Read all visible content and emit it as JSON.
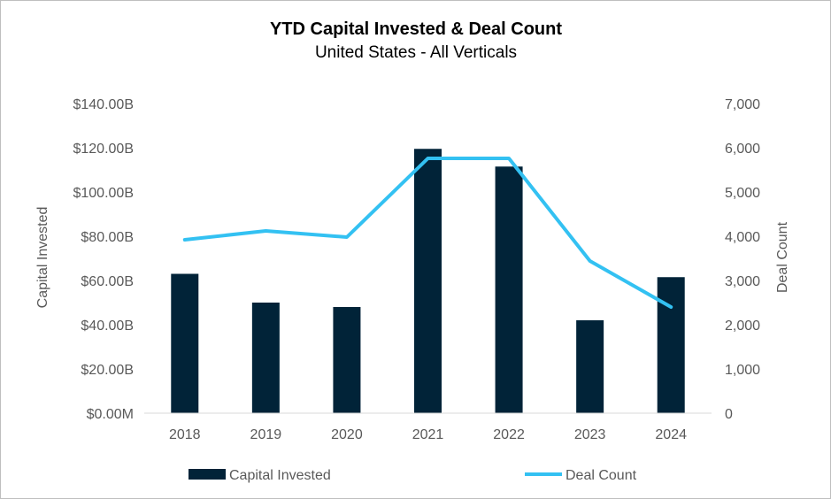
{
  "chart_data": {
    "type": "bar",
    "title": "YTD Capital Invested & Deal Count",
    "subtitle": "United States - All Verticals",
    "categories": [
      "2018",
      "2019",
      "2020",
      "2021",
      "2022",
      "2023",
      "2024"
    ],
    "ylabel": "Capital Invested",
    "ylabel_right": "Deal Count",
    "ylim": [
      0,
      140
    ],
    "ylim_right": [
      0,
      7000
    ],
    "y_ticks": [
      {
        "value": 0,
        "label": "$0.00M"
      },
      {
        "value": 20,
        "label": "$20.00B"
      },
      {
        "value": 40,
        "label": "$40.00B"
      },
      {
        "value": 60,
        "label": "$60.00B"
      },
      {
        "value": 80,
        "label": "$80.00B"
      },
      {
        "value": 100,
        "label": "$100.00B"
      },
      {
        "value": 120,
        "label": "$120.00B"
      },
      {
        "value": 140,
        "label": "$140.00B"
      }
    ],
    "y_right_ticks": [
      {
        "value": 0,
        "label": "0"
      },
      {
        "value": 1000,
        "label": "1,000"
      },
      {
        "value": 2000,
        "label": "2,000"
      },
      {
        "value": 3000,
        "label": "3,000"
      },
      {
        "value": 4000,
        "label": "4,000"
      },
      {
        "value": 5000,
        "label": "5,000"
      },
      {
        "value": 6000,
        "label": "6,000"
      },
      {
        "value": 7000,
        "label": "7,000"
      }
    ],
    "grid": false,
    "legend_position": "bottom",
    "series": [
      {
        "name": "Capital Invested",
        "type": "bar",
        "axis": "left",
        "color": "#012338",
        "values": [
          63,
          50,
          48,
          119.5,
          111.5,
          42,
          61.5
        ]
      },
      {
        "name": "Deal Count",
        "type": "line",
        "axis": "right",
        "color": "#33c1f2",
        "values": [
          3920,
          4120,
          3980,
          5760,
          5760,
          3440,
          2400
        ]
      }
    ]
  }
}
